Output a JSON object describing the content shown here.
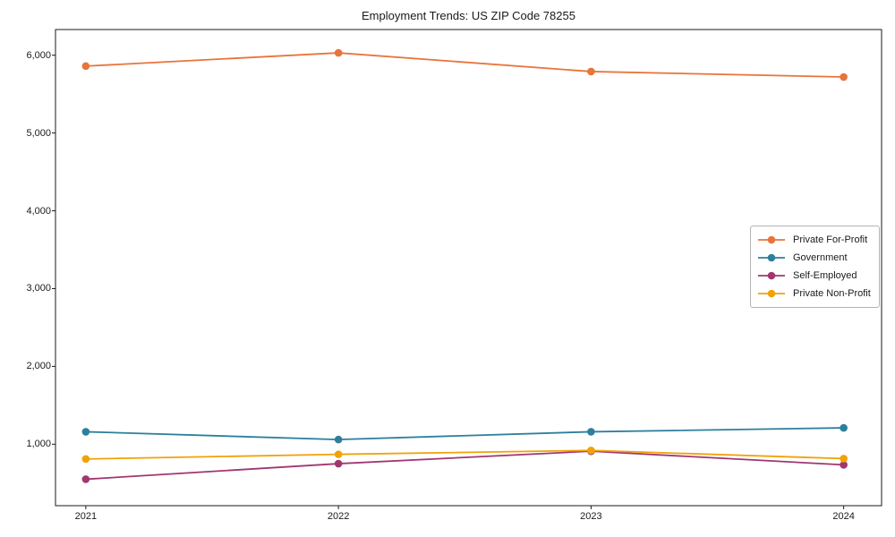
{
  "figure": {
    "title": "Employment Trends: US ZIP Code 78255"
  },
  "chart_data": {
    "type": "line",
    "title": "Employment Trends: US ZIP Code 78255",
    "xlabel": "",
    "ylabel": "",
    "x": [
      2021,
      2022,
      2023,
      2024
    ],
    "xticklabels": [
      "2021",
      "2022",
      "2023",
      "2024"
    ],
    "ytick_values": [
      1000,
      2000,
      3000,
      4000,
      5000,
      6000
    ],
    "yticklabels": [
      "1,000",
      "2,000",
      "3,000",
      "4,000",
      "5,000",
      "6,000"
    ],
    "xlim": [
      2020.88,
      2024.15
    ],
    "ylim": [
      210,
      6330
    ],
    "grid": false,
    "legend_position": "center-right",
    "series": [
      {
        "name": "Private For-Profit",
        "color": "#e8743b",
        "values": [
          5860,
          6030,
          5790,
          5720
        ]
      },
      {
        "name": "Government",
        "color": "#2d7f9d",
        "values": [
          1160,
          1060,
          1160,
          1210
        ]
      },
      {
        "name": "Self-Employed",
        "color": "#a13670",
        "values": [
          550,
          750,
          910,
          735
        ]
      },
      {
        "name": "Private Non-Profit",
        "color": "#f1a208",
        "values": [
          810,
          870,
          920,
          815
        ]
      }
    ],
    "marker": "circle",
    "axis_color": "#1a1a1a"
  }
}
